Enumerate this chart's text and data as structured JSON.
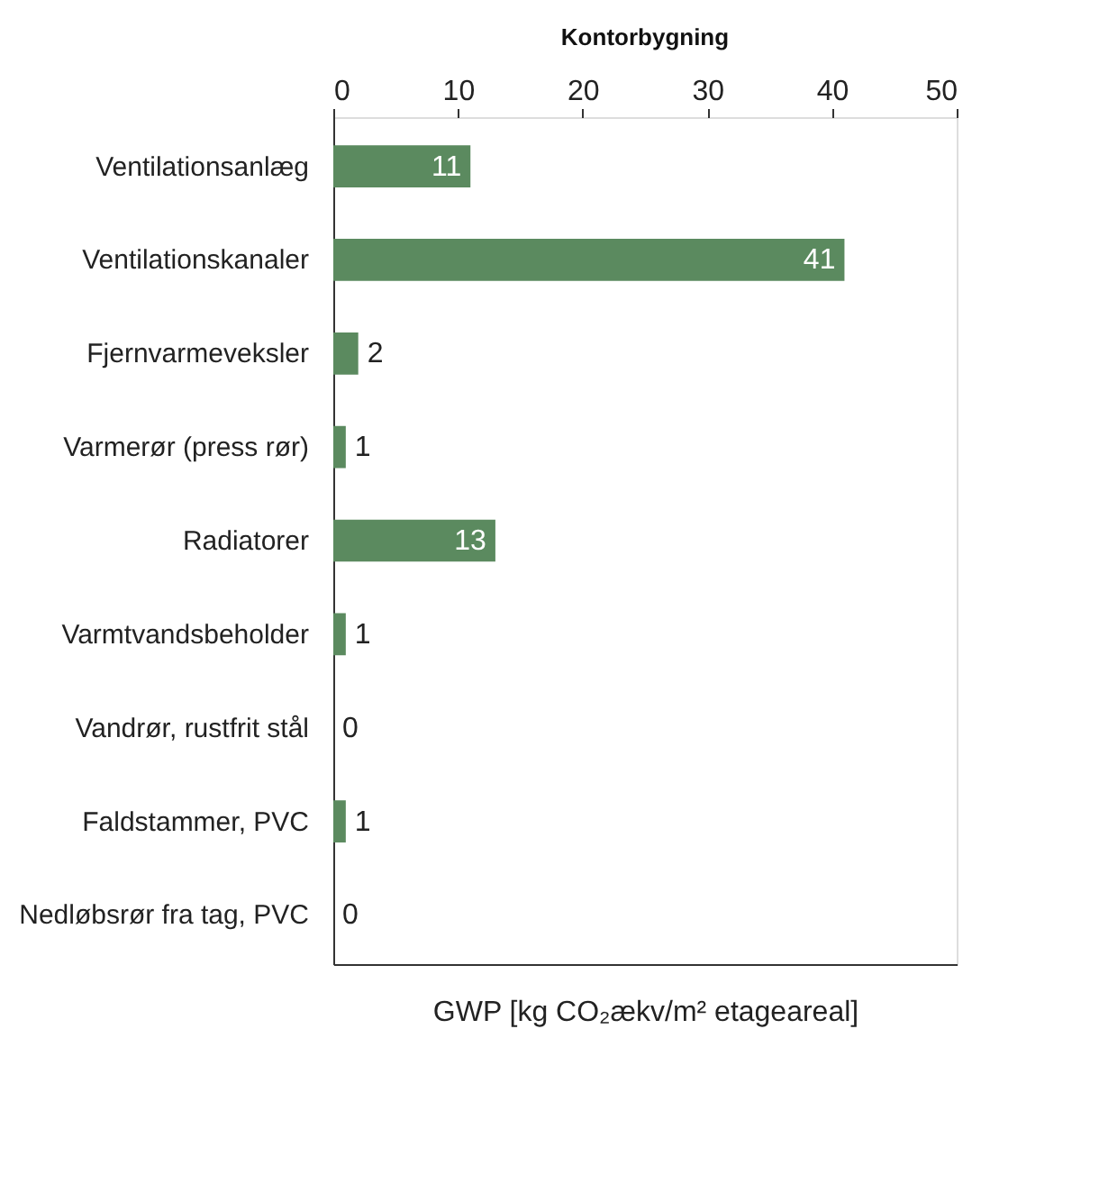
{
  "chart_data": {
    "type": "bar",
    "orientation": "horizontal",
    "title": "Kontorbygning",
    "xlabel": "GWP [kg CO₂ækv/m² etageareal]",
    "categories": [
      "Ventilationsanlæg",
      "Ventilationskanaler",
      "Fjernvarmeveksler",
      "Varmerør (press rør)",
      "Radiatorer",
      "Varmtvandsbeholder",
      "Vandrør, rustfrit stål",
      "Faldstammer, PVC",
      "Nedløbsrør fra tag, PVC"
    ],
    "values": [
      11,
      41,
      2,
      1,
      13,
      1,
      0,
      1,
      0
    ],
    "value_labels": [
      "11",
      "41",
      "2",
      "1",
      "13",
      "1",
      "0",
      "1",
      "0"
    ],
    "color": "#5b8a5f",
    "xlim": [
      0,
      50
    ],
    "xticks": [
      0,
      10,
      20,
      30,
      40,
      50
    ],
    "grid": false
  }
}
